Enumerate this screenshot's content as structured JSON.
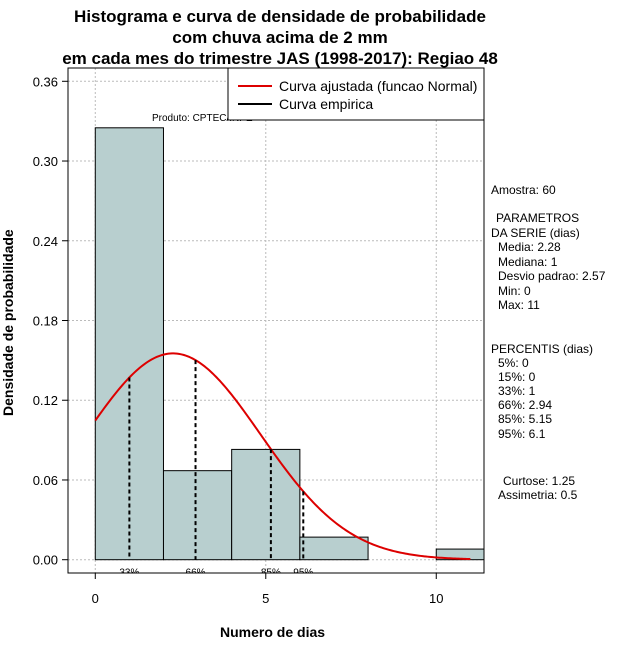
{
  "chart_data": {
    "type": "bar",
    "title": [
      "Histograma e curva de densidade de probabilidade",
      "com chuva acima de 2 mm",
      "em cada mes do trimestre JAS (1998-2017): Regiao 48"
    ],
    "xlabel": "Numero de dias",
    "ylabel": "Densidade de probabilidade",
    "xlim": [
      -0.8,
      11.4
    ],
    "ylim": [
      -0.01,
      0.37
    ],
    "x_ticks": [
      0,
      5,
      10
    ],
    "y_ticks": [
      0.0,
      0.06,
      0.12,
      0.18,
      0.24,
      0.3,
      0.36
    ],
    "y_tick_labels": [
      "0.00",
      "0.06",
      "0.12",
      "0.18",
      "0.24",
      "0.30",
      "0.36"
    ],
    "grid": true,
    "bins": [
      {
        "from": 0,
        "to": 2,
        "density": 0.325
      },
      {
        "from": 2,
        "to": 4,
        "density": 0.067
      },
      {
        "from": 4,
        "to": 6,
        "density": 0.083
      },
      {
        "from": 6,
        "to": 8,
        "density": 0.017
      },
      {
        "from": 8,
        "to": 10,
        "density": 0.0
      },
      {
        "from": 10,
        "to": 12,
        "density": 0.008
      }
    ],
    "normal_fit": {
      "mean": 2.28,
      "sd": 2.57,
      "x_range": [
        0,
        11
      ]
    },
    "percentile_lines": [
      {
        "label": "33%",
        "x": 1
      },
      {
        "label": "66%",
        "x": 2.94
      },
      {
        "label": "85%",
        "x": 5.15
      },
      {
        "label": "95%",
        "x": 6.1
      }
    ],
    "legend": {
      "position": "top-right",
      "entries": [
        {
          "label": "Curva ajustada (funcao Normal)",
          "color": "#dd0000"
        },
        {
          "label": "Curva empirica",
          "color": "#000000"
        }
      ]
    },
    "annotation": "Produto: CPTEC/INPE",
    "colors": {
      "bar_fill": "#b8cfcf",
      "curve": "#dd0000",
      "grid": "#bbbbbb"
    }
  },
  "side_panel": {
    "amostra": "Amostra: 60",
    "params_title1": "PARAMETROS",
    "params_title2": "DA SERIE (dias)",
    "media": "Media: 2.28",
    "mediana": "Mediana: 1",
    "desvio": "Desvio padrao: 2.57",
    "min": "Min: 0",
    "max": "Max: 11",
    "percentis_title": "PERCENTIS (dias)",
    "p5": "5%: 0",
    "p15": "15%: 0",
    "p33": "33%: 1",
    "p66": "66%: 2.94",
    "p85": "85%: 5.15",
    "p95": "95%: 6.1",
    "curtose": "Curtose: 1.25",
    "assimetria": "Assimetria: 0.5"
  }
}
